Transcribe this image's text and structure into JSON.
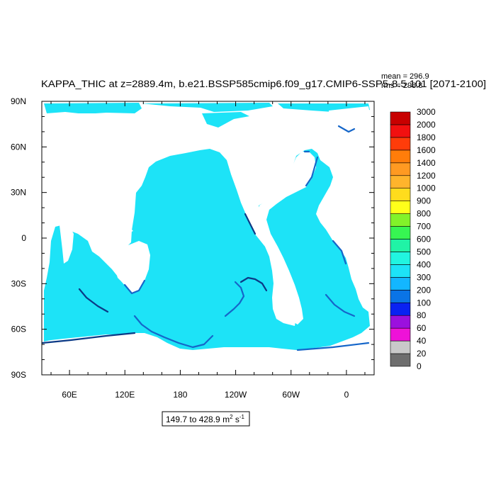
{
  "title": "KAPPA_THIC at z=2889.4m, b.e21.BSSP585cmip6.f09_g17.CMIP6-SSP5-8.5.101 [2071-2100]",
  "stats": {
    "mean_label": "mean = 296.9",
    "rms_label": "rms = 298.8"
  },
  "range_box": {
    "prefix": "149.7 to 428.9 m",
    "unit_sup1": "2",
    "unit_mid": " s",
    "unit_sup2": "-1"
  },
  "colors": {
    "land": "#ffffff",
    "ocean": "#1de3f7",
    "coast": "#1566c9",
    "coast_dark": "#0b3a86"
  },
  "chart_data": {
    "type": "heatmap",
    "variable": "KAPPA_THIC",
    "units": "m2 s-1",
    "mean": 296.9,
    "rms": 298.8,
    "min": 149.7,
    "max": 428.9,
    "dominant_bin": [
      300,
      400
    ],
    "xlim": [
      30,
      390
    ],
    "ylim": [
      -90,
      90
    ],
    "x_ticks": [
      {
        "lon": 60,
        "label": "60E"
      },
      {
        "lon": 120,
        "label": "120E"
      },
      {
        "lon": 180,
        "label": "180"
      },
      {
        "lon": 240,
        "label": "120W"
      },
      {
        "lon": 300,
        "label": "60W"
      },
      {
        "lon": 360,
        "label": "0"
      }
    ],
    "y_ticks": [
      {
        "lat": 90,
        "label": "90N"
      },
      {
        "lat": 60,
        "label": "60N"
      },
      {
        "lat": 30,
        "label": "30N"
      },
      {
        "lat": 0,
        "label": "0"
      },
      {
        "lat": -30,
        "label": "30S"
      },
      {
        "lat": -60,
        "label": "60S"
      },
      {
        "lat": -90,
        "label": "90S"
      }
    ],
    "colorbar": {
      "labels": [
        "0",
        "20",
        "40",
        "60",
        "80",
        "100",
        "200",
        "300",
        "400",
        "500",
        "600",
        "700",
        "800",
        "900",
        "1000",
        "1200",
        "1400",
        "1600",
        "1800",
        "2000",
        "3000"
      ],
      "colors": [
        "#6e6e6e",
        "#c9c9c9",
        "#ee12d8",
        "#9b10de",
        "#0a22f2",
        "#0a74e6",
        "#13b6ff",
        "#1de3f7",
        "#21f5e0",
        "#20f3a6",
        "#37f552",
        "#82f22a",
        "#ffff1a",
        "#ffdc1d",
        "#ffb42c",
        "#ff9a22",
        "#ff7d0a",
        "#ff3c0a",
        "#f21010",
        "#c80000"
      ]
    }
  }
}
